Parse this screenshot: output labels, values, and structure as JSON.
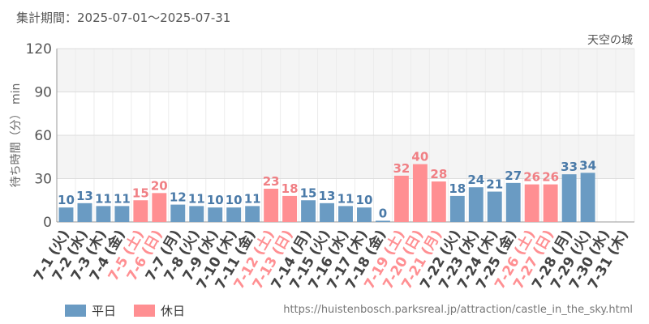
{
  "header": {
    "period_label": "集計期間：2025-07-01〜2025-07-31",
    "attraction": "天空の城"
  },
  "legend": {
    "weekday_label": "平日",
    "holiday_label": "休日"
  },
  "footer": {
    "source_url": "https://huistenbosch.parksreal.jp/attraction/castle_in_the_sky.html"
  },
  "colors": {
    "weekday": "#6a9bc3",
    "holiday": "#ff8f92",
    "weekday_label": "#4a7aa8",
    "holiday_label": "#f07f84"
  },
  "chart_data": {
    "type": "bar",
    "ylabel": "待ち時間（分） min",
    "ylim": [
      0,
      120
    ],
    "yticks": [
      0,
      30,
      60,
      90,
      120
    ],
    "grid": true,
    "legend_position": "bottom-left",
    "categories": [
      "7-1 (火)",
      "7-2 (水)",
      "7-3 (木)",
      "7-4 (金)",
      "7-5 (土)",
      "7-6 (日)",
      "7-7 (月)",
      "7-8 (火)",
      "7-9 (水)",
      "7-10 (木)",
      "7-11 (金)",
      "7-12 (土)",
      "7-13 (日)",
      "7-14 (月)",
      "7-15 (火)",
      "7-16 (水)",
      "7-17 (木)",
      "7-18 (金)",
      "7-19 (土)",
      "7-20 (日)",
      "7-21 (月)",
      "7-22 (火)",
      "7-23 (水)",
      "7-24 (木)",
      "7-25 (金)",
      "7-26 (土)",
      "7-27 (日)",
      "7-28 (月)",
      "7-29 (火)",
      "7-30 (水)",
      "7-31 (木)"
    ],
    "values": [
      10,
      13,
      11,
      11,
      15,
      20,
      12,
      11,
      10,
      10,
      11,
      23,
      18,
      15,
      13,
      11,
      10,
      0,
      32,
      40,
      28,
      18,
      24,
      21,
      27,
      26,
      26,
      33,
      34,
      null,
      null
    ],
    "day_type": [
      "weekday",
      "weekday",
      "weekday",
      "weekday",
      "holiday",
      "holiday",
      "weekday",
      "weekday",
      "weekday",
      "weekday",
      "weekday",
      "holiday",
      "holiday",
      "weekday",
      "weekday",
      "weekday",
      "weekday",
      "weekday",
      "holiday",
      "holiday",
      "holiday",
      "weekday",
      "weekday",
      "weekday",
      "weekday",
      "holiday",
      "holiday",
      "weekday",
      "weekday",
      "weekday",
      "weekday"
    ],
    "series": [
      {
        "name": "平日",
        "key": "weekday"
      },
      {
        "name": "休日",
        "key": "holiday"
      }
    ]
  }
}
